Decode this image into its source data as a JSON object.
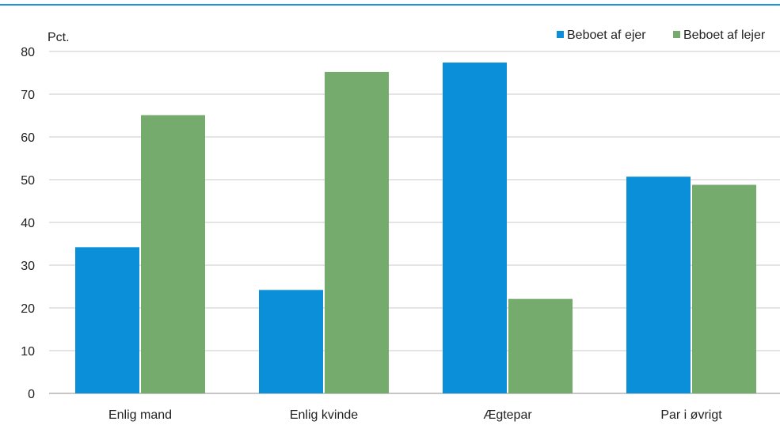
{
  "chart_data": {
    "type": "bar",
    "ylabel": "Pct.",
    "ylim": [
      0,
      80
    ],
    "yticks": [
      0,
      10,
      20,
      30,
      40,
      50,
      60,
      70,
      80
    ],
    "grid": true,
    "legend_position": "top-right",
    "categories": [
      "Enlig mand",
      "Enlig kvinde",
      "Ægtepar",
      "Par i øvrigt"
    ],
    "series": [
      {
        "name": "Beboet af ejer",
        "color": "#0a8fd8",
        "values": [
          34.2,
          24.2,
          77.4,
          50.7
        ]
      },
      {
        "name": "Beboet af lejer",
        "color": "#76ab6e",
        "values": [
          65.1,
          75.2,
          22.1,
          48.8
        ]
      }
    ]
  },
  "colors": {
    "top_rule": "#1a96d6",
    "grid": "#c8c8c8",
    "axis": "#8c8c8c"
  }
}
